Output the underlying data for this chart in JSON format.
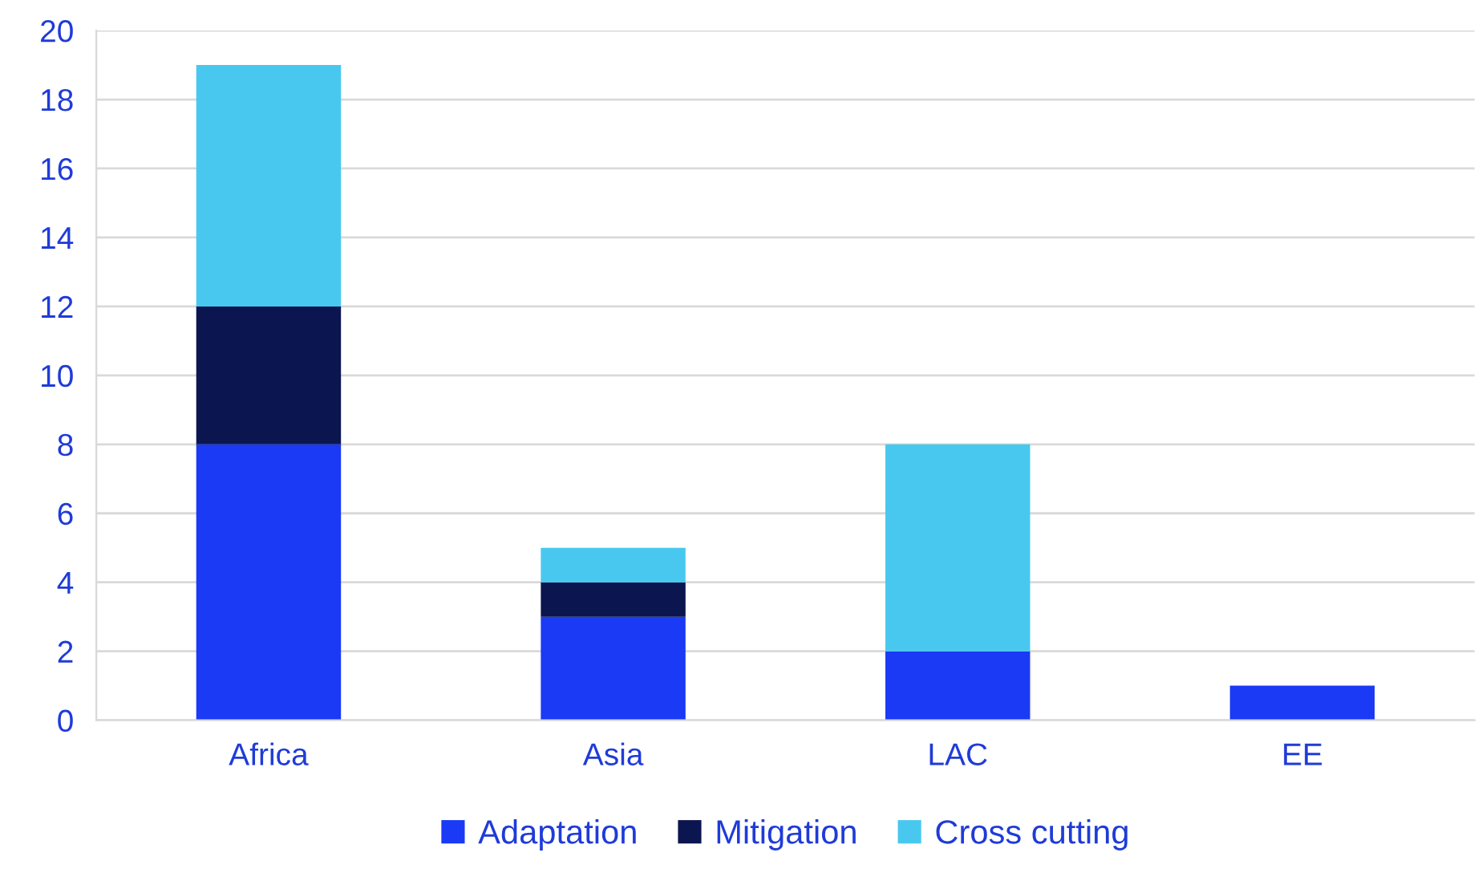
{
  "chart_data": {
    "type": "bar",
    "stacked": true,
    "categories": [
      "Africa",
      "Asia",
      "LAC",
      "EE"
    ],
    "series": [
      {
        "name": "Adaptation",
        "color": "#1a3af5",
        "values": [
          8,
          3,
          2,
          1
        ]
      },
      {
        "name": "Mitigation",
        "color": "#0b1650",
        "values": [
          4,
          1,
          0,
          0
        ]
      },
      {
        "name": "Cross cutting",
        "color": "#48c8ef",
        "values": [
          7,
          1,
          6,
          0
        ]
      }
    ],
    "ylim": [
      0,
      20
    ],
    "yticks": [
      0,
      2,
      4,
      6,
      8,
      10,
      12,
      14,
      16,
      18,
      20
    ],
    "grid": "y",
    "legend": "bottom"
  }
}
